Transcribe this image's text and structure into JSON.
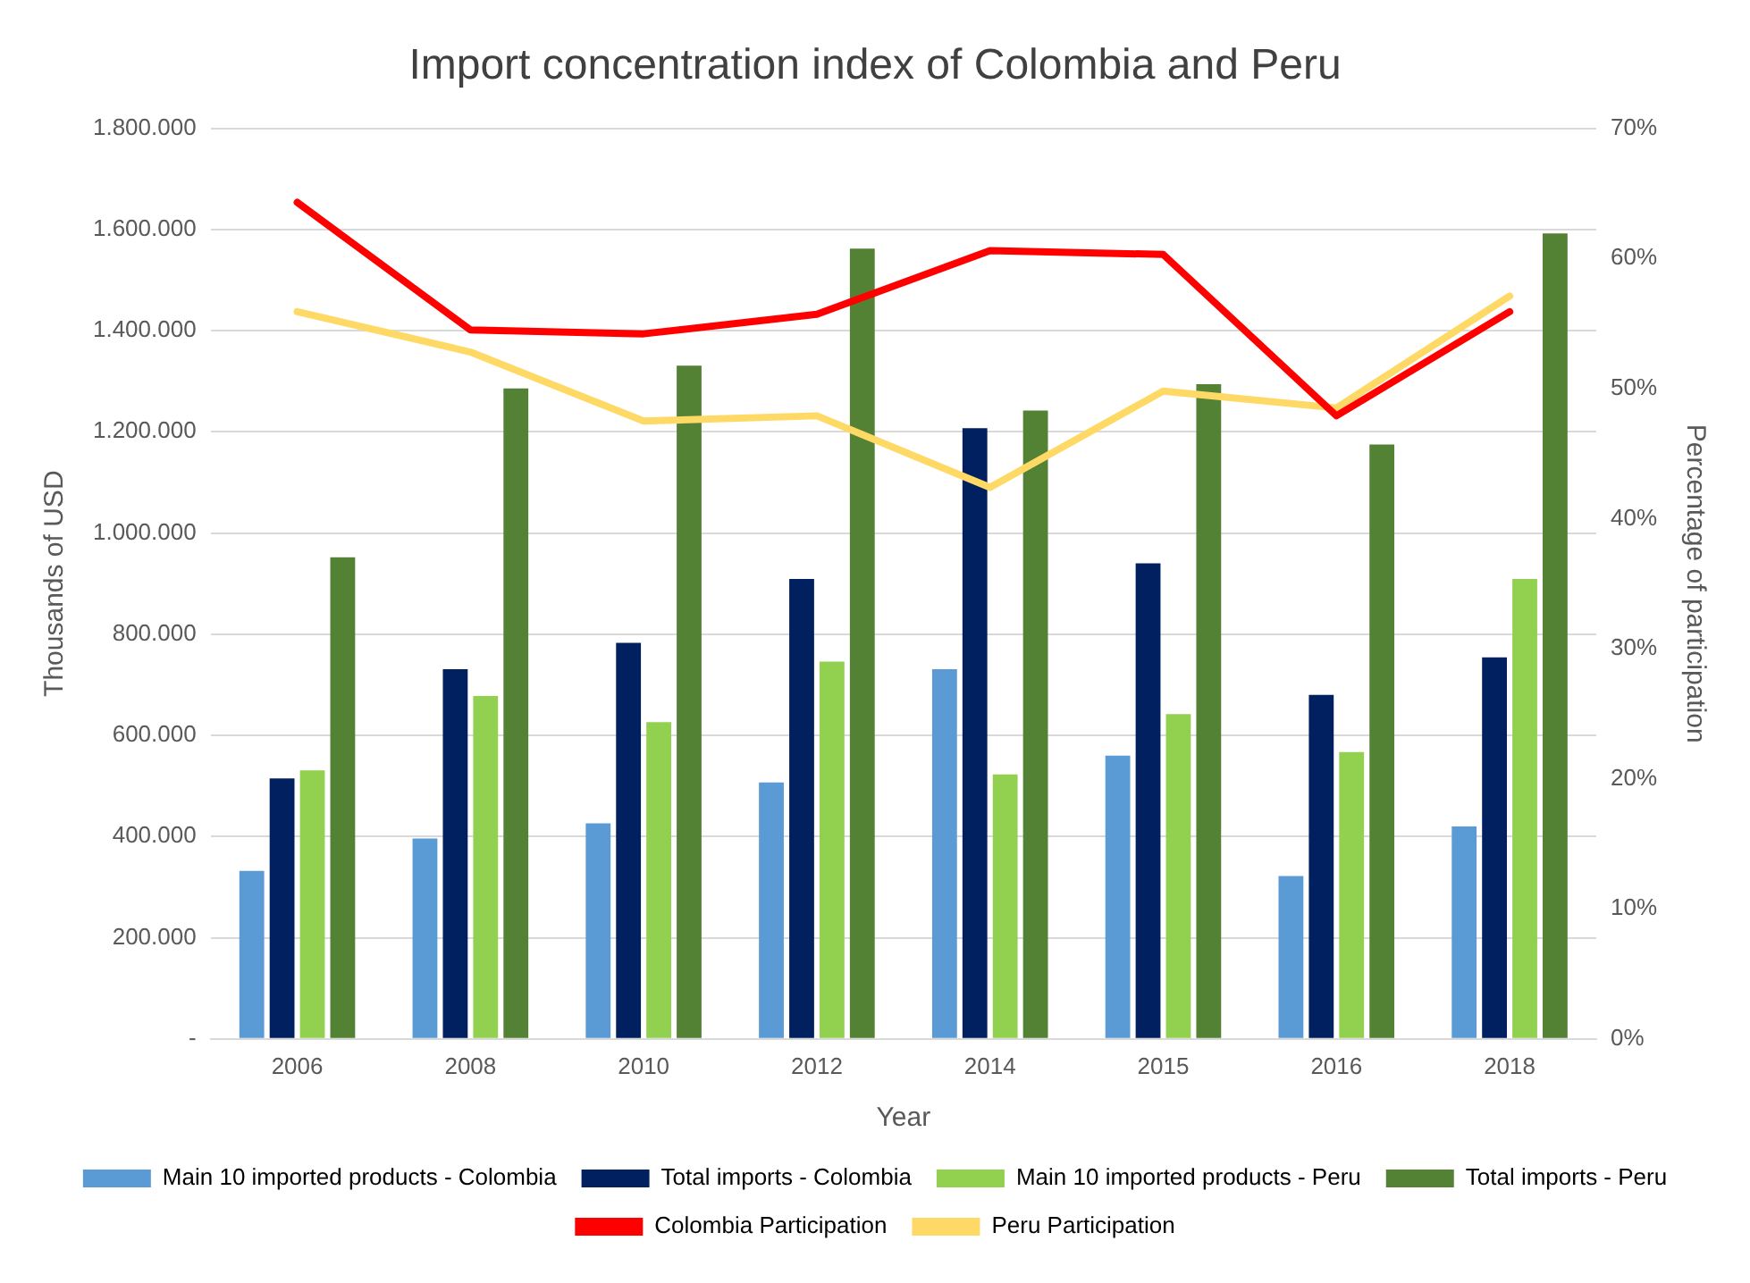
{
  "chart_data": {
    "type": "bar",
    "title": "Import concentration index of Colombia and Peru",
    "xlabel": "Year",
    "ylabel": "Thousands of USD",
    "y2label": "Percentage of participation",
    "categories": [
      "2006",
      "2008",
      "2010",
      "2012",
      "2014",
      "2015",
      "2016",
      "2018"
    ],
    "series": [
      {
        "name": "Main 10 imported products - Colombia",
        "color": "#5b9bd5",
        "values": [
          332000,
          396000,
          426000,
          507000,
          731000,
          560000,
          322000,
          420000
        ]
      },
      {
        "name": "Total imports - Colombia",
        "color": "#002060",
        "values": [
          515000,
          731000,
          783000,
          909000,
          1207000,
          940000,
          680000,
          754000
        ]
      },
      {
        "name": "Main 10 imported products - Peru",
        "color": "#92d050",
        "values": [
          531000,
          678000,
          626000,
          746000,
          523000,
          642000,
          567000,
          909000
        ]
      },
      {
        "name": "Total imports - Peru",
        "color": "#548235",
        "values": [
          952000,
          1286000,
          1331000,
          1562000,
          1242000,
          1294000,
          1175000,
          1592000
        ]
      },
      {
        "name": "Colombia Participation",
        "type": "line",
        "axis": "y2",
        "color": "#ff0000",
        "values": [
          64.3,
          54.5,
          54.2,
          55.7,
          60.6,
          60.3,
          47.9,
          55.9
        ]
      },
      {
        "name": "Peru Participation",
        "type": "line",
        "axis": "y2",
        "color": "#ffd966",
        "values": [
          55.9,
          52.8,
          47.5,
          47.9,
          42.4,
          49.8,
          48.5,
          57.1
        ]
      }
    ],
    "ylim": [
      0,
      1800000
    ],
    "yticks": [
      {
        "value": 0,
        "label": "-"
      },
      {
        "value": 200000,
        "label": "200.000"
      },
      {
        "value": 400000,
        "label": "400.000"
      },
      {
        "value": 600000,
        "label": "600.000"
      },
      {
        "value": 800000,
        "label": "800.000"
      },
      {
        "value": 1000000,
        "label": "1.000.000"
      },
      {
        "value": 1200000,
        "label": "1.200.000"
      },
      {
        "value": 1400000,
        "label": "1.400.000"
      },
      {
        "value": 1600000,
        "label": "1.600.000"
      },
      {
        "value": 1800000,
        "label": "1.800.000"
      }
    ],
    "y2lim": [
      0,
      70
    ],
    "y2ticks": [
      {
        "value": 0,
        "label": "0%"
      },
      {
        "value": 10,
        "label": "10%"
      },
      {
        "value": 20,
        "label": "20%"
      },
      {
        "value": 30,
        "label": "30%"
      },
      {
        "value": 40,
        "label": "40%"
      },
      {
        "value": 50,
        "label": "50%"
      },
      {
        "value": 60,
        "label": "60%"
      },
      {
        "value": 70,
        "label": "70%"
      }
    ],
    "grid": "y",
    "legend": "bottom",
    "marker": "none"
  }
}
